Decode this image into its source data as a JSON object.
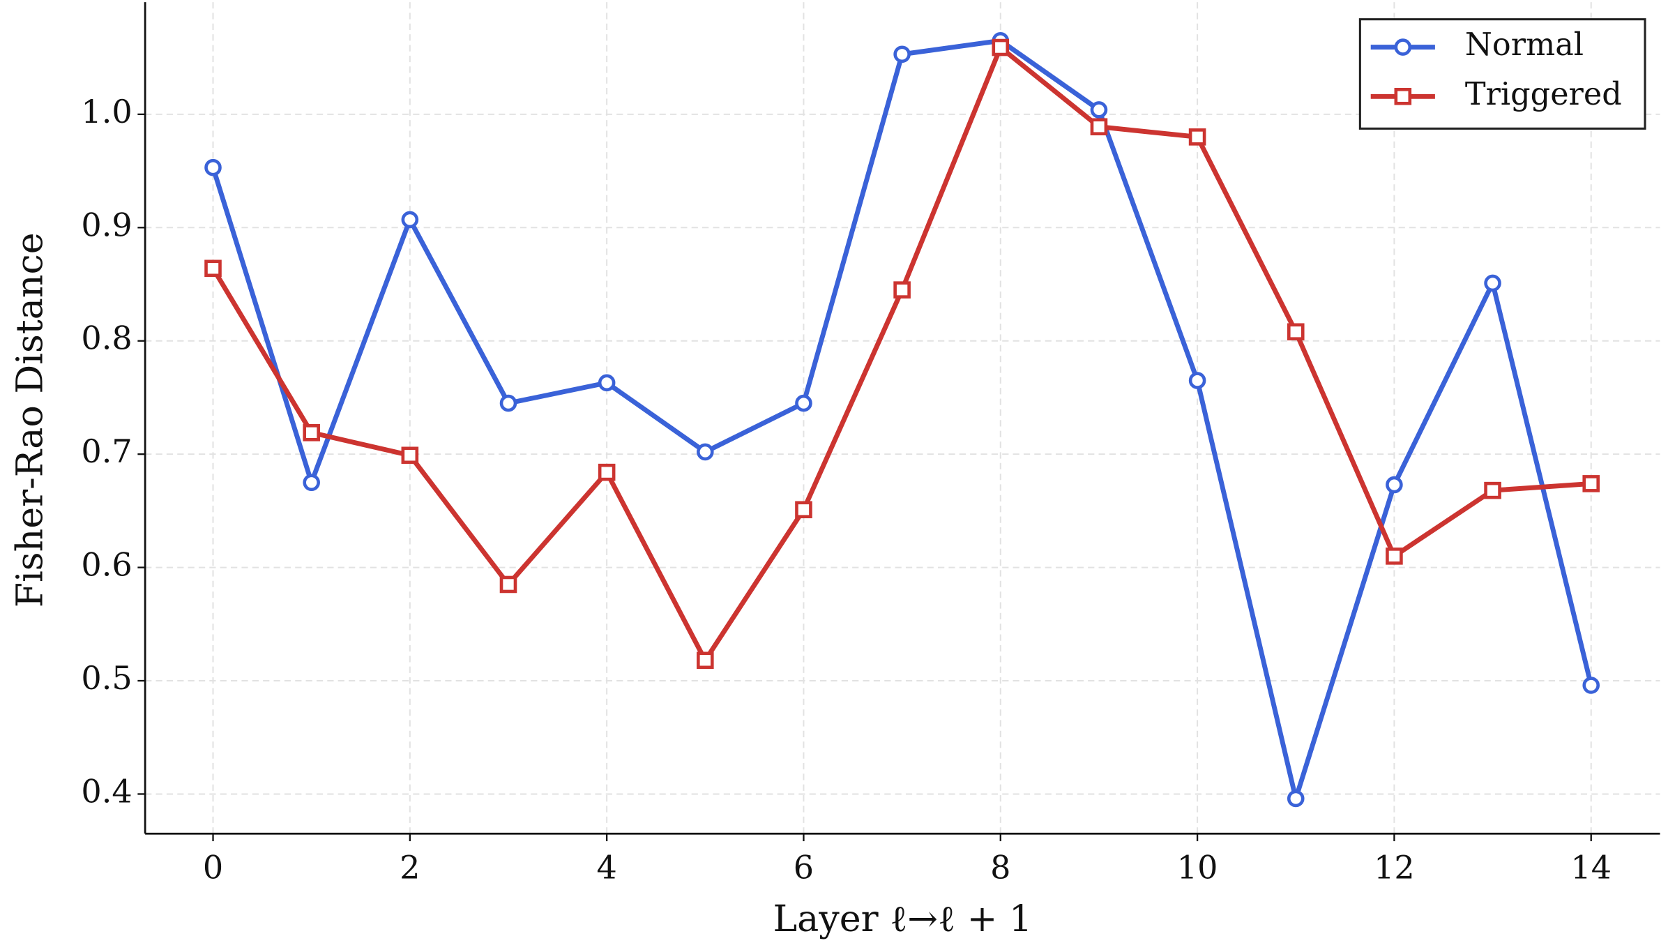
{
  "chart_data": {
    "type": "line",
    "x_label": "Layer ℓ→ℓ + 1",
    "y_label": "Fisher-Rao Distance",
    "x": [
      0,
      1,
      2,
      3,
      4,
      5,
      6,
      7,
      8,
      9,
      10,
      11,
      12,
      13,
      14
    ],
    "series": [
      {
        "name": "Normal",
        "color": "#3a62d8",
        "marker": "circle",
        "values": [
          0.953,
          0.675,
          0.907,
          0.745,
          0.763,
          0.702,
          0.745,
          1.053,
          1.065,
          1.004,
          0.765,
          0.396,
          0.673,
          0.851,
          0.496
        ]
      },
      {
        "name": "Triggered",
        "color": "#cc3430",
        "marker": "square",
        "values": [
          0.864,
          0.719,
          0.699,
          0.585,
          0.684,
          0.518,
          0.651,
          0.845,
          1.059,
          0.989,
          0.98,
          0.808,
          0.61,
          0.668,
          0.674
        ]
      }
    ],
    "xlim": [
      -0.69,
      14.7
    ],
    "ylim": [
      0.365,
      1.099
    ],
    "xticks": [
      0,
      2,
      4,
      6,
      8,
      10,
      12,
      14
    ],
    "yticks": [
      0.4,
      0.5,
      0.6,
      0.7,
      0.8,
      0.9,
      {
        "value": 1,
        "label": "1.0"
      }
    ],
    "grid": true,
    "legend": "upper right"
  }
}
